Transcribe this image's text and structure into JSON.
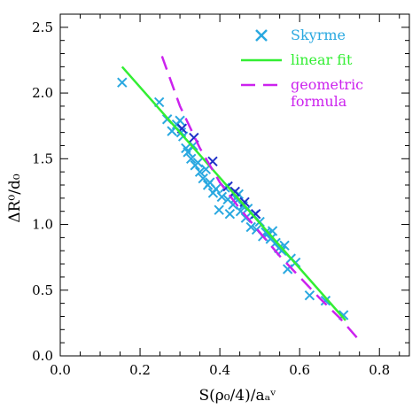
{
  "chart_data": {
    "type": "scatter",
    "xlim": [
      0.0,
      0.875
    ],
    "ylim": [
      0.0,
      2.6
    ],
    "x_ticks": [
      0.0,
      0.2,
      0.4,
      0.6,
      0.8
    ],
    "x_tick_labels": [
      "0.0",
      "0.2",
      "0.4",
      "0.6",
      "0.8"
    ],
    "y_ticks": [
      0.0,
      0.5,
      1.0,
      1.5,
      2.0,
      2.5
    ],
    "y_tick_labels": [
      "0.0",
      "0.5",
      "1.0",
      "1.5",
      "2.0",
      "2.5"
    ],
    "xlabel": "S(ρ₀/4)/aₐᵛ",
    "ylabel": "ΔR⁰/d₀",
    "grid": false,
    "legend_position": "top-right",
    "series": [
      {
        "name": "Skyrme",
        "kind": "markers",
        "marker": "x",
        "color": "#29a8e0",
        "points": [
          [
            0.155,
            2.08
          ],
          [
            0.248,
            1.93
          ],
          [
            0.268,
            1.8
          ],
          [
            0.28,
            1.71
          ],
          [
            0.292,
            1.76
          ],
          [
            0.3,
            1.79
          ],
          [
            0.303,
            1.7
          ],
          [
            0.308,
            1.67
          ],
          [
            0.315,
            1.58
          ],
          [
            0.32,
            1.55
          ],
          [
            0.328,
            1.5
          ],
          [
            0.333,
            1.6
          ],
          [
            0.338,
            1.45
          ],
          [
            0.345,
            1.47
          ],
          [
            0.35,
            1.4
          ],
          [
            0.358,
            1.35
          ],
          [
            0.365,
            1.42
          ],
          [
            0.37,
            1.3
          ],
          [
            0.375,
            1.32
          ],
          [
            0.383,
            1.24
          ],
          [
            0.39,
            1.27
          ],
          [
            0.398,
            1.11
          ],
          [
            0.405,
            1.21
          ],
          [
            0.413,
            1.28
          ],
          [
            0.42,
            1.19
          ],
          [
            0.425,
            1.08
          ],
          [
            0.433,
            1.15
          ],
          [
            0.44,
            1.2
          ],
          [
            0.447,
            1.23
          ],
          [
            0.452,
            1.1
          ],
          [
            0.458,
            1.14
          ],
          [
            0.465,
            1.05
          ],
          [
            0.47,
            1.12
          ],
          [
            0.478,
            0.98
          ],
          [
            0.485,
            1.07
          ],
          [
            0.492,
            0.96
          ],
          [
            0.5,
            1.02
          ],
          [
            0.508,
            0.91
          ],
          [
            0.515,
            0.94
          ],
          [
            0.52,
            0.93
          ],
          [
            0.527,
            0.89
          ],
          [
            0.532,
            0.95
          ],
          [
            0.54,
            0.86
          ],
          [
            0.548,
            0.82
          ],
          [
            0.555,
            0.8
          ],
          [
            0.562,
            0.84
          ],
          [
            0.57,
            0.66
          ],
          [
            0.578,
            0.74
          ],
          [
            0.59,
            0.71
          ],
          [
            0.625,
            0.46
          ],
          [
            0.665,
            0.42
          ],
          [
            0.71,
            0.31
          ]
        ]
      },
      {
        "name": "",
        "kind": "markers",
        "marker": "x",
        "color": "#1e2fc8",
        "points": [
          [
            0.305,
            1.73
          ],
          [
            0.335,
            1.66
          ],
          [
            0.382,
            1.48
          ],
          [
            0.42,
            1.29
          ],
          [
            0.438,
            1.25
          ],
          [
            0.462,
            1.17
          ],
          [
            0.49,
            1.08
          ]
        ]
      },
      {
        "name": "linear fit",
        "kind": "line",
        "dash": "solid",
        "color": "#33ee33",
        "points": [
          [
            0.155,
            2.2
          ],
          [
            0.715,
            0.27
          ]
        ]
      },
      {
        "name": "geometric formula",
        "kind": "line",
        "dash": "dashed",
        "color": "#cc22ee",
        "points": [
          [
            0.255,
            2.28
          ],
          [
            0.3,
            1.9
          ],
          [
            0.35,
            1.58
          ],
          [
            0.4,
            1.32
          ],
          [
            0.45,
            1.12
          ],
          [
            0.5,
            0.94
          ],
          [
            0.55,
            0.76
          ],
          [
            0.6,
            0.6
          ],
          [
            0.65,
            0.44
          ],
          [
            0.7,
            0.29
          ],
          [
            0.752,
            0.11
          ]
        ]
      }
    ],
    "legend": [
      {
        "label": "Skyrme",
        "color": "#29a8e0",
        "symbol": "x"
      },
      {
        "label": "linear fit",
        "color": "#33ee33",
        "symbol": "solid-line"
      },
      {
        "label": "geometric\nformula",
        "color": "#cc22ee",
        "symbol": "dashed-line"
      }
    ]
  }
}
